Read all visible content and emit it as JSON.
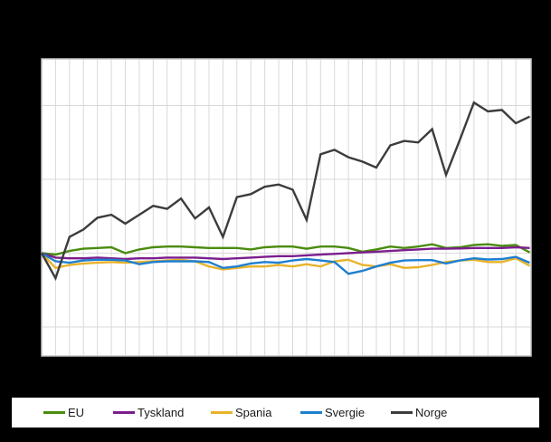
{
  "colors": {
    "page_background": "#000000",
    "plot_background": "#ffffff",
    "grid_color": "#d9d9d9",
    "border_color": "#c4c4c4",
    "legend_background": "#ffffff",
    "legend_text": "#1a1a1a"
  },
  "legend": {
    "items": [
      {
        "label": "EU",
        "color": "#4a8c0e"
      },
      {
        "label": "Tyskland",
        "color": "#7b1e8e"
      },
      {
        "label": "Spania",
        "color": "#e8b32b"
      },
      {
        "label": "Svergie",
        "color": "#1e7fd0"
      },
      {
        "label": "Norge",
        "color": "#3c3c3c"
      }
    ]
  },
  "chart_data": {
    "type": "line",
    "title": "",
    "xlabel": "",
    "ylabel": "",
    "x_points": 36,
    "x_tick_labels_visible": false,
    "y_tick_labels_visible": false,
    "baseline_value": 100,
    "gridline_values": [
      50,
      100,
      150,
      200
    ],
    "ylim": [
      30,
      232
    ],
    "grid": true,
    "legend_position": "bottom",
    "series": [
      {
        "name": "EU",
        "color": "#4a8c0e",
        "values": [
          100,
          99,
          101.5,
          103,
          103.5,
          104,
          100,
          102.5,
          104,
          104.5,
          104.5,
          104,
          103.5,
          103.5,
          103.5,
          102.5,
          104,
          104.5,
          104.5,
          103,
          104.5,
          104.5,
          103.5,
          101,
          102.5,
          104.5,
          103.5,
          104.5,
          106,
          103.5,
          104,
          105.5,
          106,
          105,
          105.5,
          100.5
        ]
      },
      {
        "name": "Tyskland",
        "color": "#7b1e8e",
        "values": [
          100,
          97,
          96.5,
          96.5,
          97,
          96.5,
          96,
          96.5,
          96.5,
          97,
          97,
          97,
          96.5,
          96,
          96.5,
          97,
          97.5,
          98,
          98,
          98.5,
          99,
          99.5,
          100,
          100.5,
          101,
          101.5,
          102,
          102.5,
          103,
          103,
          103.2,
          103.5,
          103.5,
          103.5,
          104,
          103.5
        ]
      },
      {
        "name": "Spania",
        "color": "#e8b32b",
        "values": [
          100,
          90,
          92,
          93,
          93.5,
          94,
          93.5,
          94,
          94.5,
          95,
          95.5,
          94.5,
          91,
          89,
          90,
          91,
          91,
          92,
          91,
          92.5,
          91,
          94.5,
          95.5,
          92,
          91,
          92.5,
          90,
          90.5,
          92,
          94,
          95,
          95.5,
          94,
          94,
          96.5,
          91.5
        ]
      },
      {
        "name": "Svergie",
        "color": "#1e7fd0",
        "values": [
          100,
          94.5,
          93.5,
          95,
          95.5,
          95.5,
          95,
          92.5,
          94,
          94.5,
          94.5,
          94.5,
          94,
          90,
          91,
          93,
          94,
          93.5,
          95,
          96,
          95,
          94,
          86,
          88,
          91,
          93.5,
          95,
          95.3,
          95.3,
          93,
          95,
          96.5,
          95.7,
          96,
          97.5,
          93.5
        ]
      },
      {
        "name": "Norge",
        "color": "#3c3c3c",
        "values": [
          100,
          83,
          111,
          116,
          124,
          126,
          120,
          126,
          132,
          130,
          137,
          123.5,
          131,
          111,
          138,
          140,
          145,
          146.5,
          143,
          122.5,
          167,
          170,
          165,
          162,
          158,
          173,
          176,
          175,
          184,
          153,
          177,
          202,
          196,
          197,
          188,
          192.5
        ]
      }
    ]
  }
}
